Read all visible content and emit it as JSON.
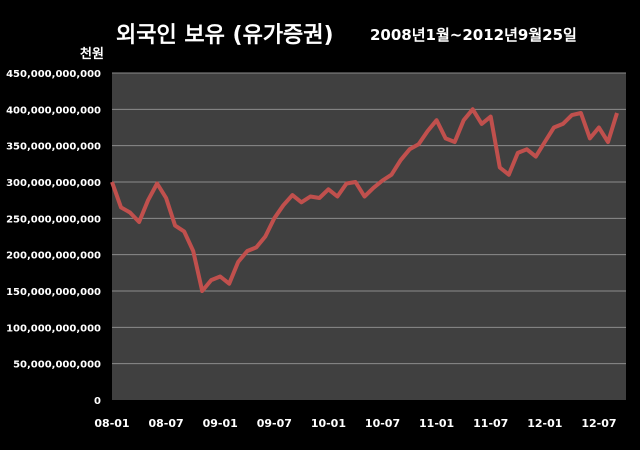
{
  "chart_data": {
    "type": "line",
    "title": "외국인 보유 (유가증권)",
    "subtitle": "2008년1월~2012년9월25일",
    "ylabel": "천원",
    "xlabel": "",
    "ylim": [
      0,
      450000000000
    ],
    "y_ticks": [
      "0",
      "50,000,000,000",
      "100,000,000,000",
      "150,000,000,000",
      "200,000,000,000",
      "250,000,000,000",
      "300,000,000,000",
      "350,000,000,000",
      "400,000,000,000",
      "450,000,000,000"
    ],
    "x_ticks": [
      "08-01",
      "08-07",
      "09-01",
      "09-07",
      "10-01",
      "10-07",
      "11-01",
      "11-07",
      "12-01",
      "12-07"
    ],
    "grid": true,
    "legend": "none",
    "series_color": "#c0504d",
    "plot_background": "#404040",
    "series": [
      {
        "x": [
          "2008-01",
          "2008-02",
          "2008-03",
          "2008-04",
          "2008-05",
          "2008-06",
          "2008-07",
          "2008-08",
          "2008-09",
          "2008-10",
          "2008-11",
          "2008-12",
          "2009-01",
          "2009-02",
          "2009-03",
          "2009-04",
          "2009-05",
          "2009-06",
          "2009-07",
          "2009-08",
          "2009-09",
          "2009-10",
          "2009-11",
          "2009-12",
          "2010-01",
          "2010-02",
          "2010-03",
          "2010-04",
          "2010-05",
          "2010-06",
          "2010-07",
          "2010-08",
          "2010-09",
          "2010-10",
          "2010-11",
          "2010-12",
          "2011-01",
          "2011-02",
          "2011-03",
          "2011-04",
          "2011-05",
          "2011-06",
          "2011-07",
          "2011-08",
          "2011-09",
          "2011-10",
          "2011-11",
          "2011-12",
          "2012-01",
          "2012-02",
          "2012-03",
          "2012-04",
          "2012-05",
          "2012-06",
          "2012-07",
          "2012-08",
          "2012-09"
        ],
        "values": [
          300000000000,
          265000000000,
          258000000000,
          245000000000,
          275000000000,
          298000000000,
          278000000000,
          240000000000,
          232000000000,
          205000000000,
          150000000000,
          165000000000,
          170000000000,
          160000000000,
          190000000000,
          205000000000,
          210000000000,
          225000000000,
          250000000000,
          268000000000,
          282000000000,
          272000000000,
          280000000000,
          278000000000,
          290000000000,
          280000000000,
          298000000000,
          300000000000,
          280000000000,
          292000000000,
          302000000000,
          310000000000,
          330000000000,
          345000000000,
          352000000000,
          370000000000,
          385000000000,
          360000000000,
          355000000000,
          385000000000,
          400000000000,
          380000000000,
          390000000000,
          320000000000,
          310000000000,
          340000000000,
          345000000000,
          335000000000,
          355000000000,
          375000000000,
          380000000000,
          392000000000,
          395000000000,
          360000000000,
          375000000000,
          355000000000,
          395000000000
        ]
      }
    ]
  }
}
